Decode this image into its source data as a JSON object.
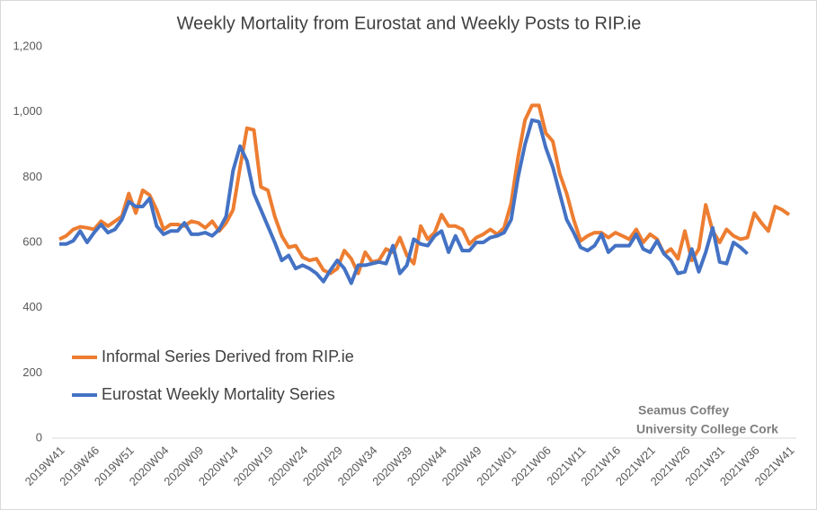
{
  "chart_data": {
    "type": "line",
    "title": "Weekly Mortality from Eurostat and Weekly Posts to RIP.ie",
    "annotation": [
      "Seamus Coffey",
      "University College Cork"
    ],
    "legend": "left-lower",
    "grid": false,
    "categories": [
      "2019W41",
      null,
      null,
      null,
      null,
      "2019W46",
      null,
      null,
      null,
      null,
      "2019W51",
      null,
      null,
      null,
      null,
      "2020W04",
      null,
      null,
      null,
      null,
      "2020W09",
      null,
      null,
      null,
      null,
      "2020W14",
      null,
      null,
      null,
      null,
      "2020W19",
      null,
      null,
      null,
      null,
      "2020W24",
      null,
      null,
      null,
      null,
      "2020W29",
      null,
      null,
      null,
      null,
      "2020W34",
      null,
      null,
      null,
      null,
      "2020W39",
      null,
      null,
      null,
      null,
      "2020W44",
      null,
      null,
      null,
      null,
      "2020W49",
      null,
      null,
      null,
      null,
      "2021W01",
      null,
      null,
      null,
      null,
      "2021W06",
      null,
      null,
      null,
      null,
      "2021W11",
      null,
      null,
      null,
      null,
      "2021W16",
      null,
      null,
      null,
      null,
      "2021W21",
      null,
      null,
      null,
      null,
      "2021W26",
      null,
      null,
      null,
      null,
      "2021W31",
      null,
      null,
      null,
      null,
      "2021W36",
      null,
      null,
      null,
      null,
      "2021W41"
    ],
    "ylim": [
      0,
      1200
    ],
    "yticks": [
      0,
      200,
      400,
      600,
      800,
      {
        "value": 1000,
        "label": "1,000"
      },
      {
        "value": 1200,
        "label": "1,200"
      }
    ],
    "series": [
      {
        "name": "Informal Series Derived from RIP.ie",
        "color": "#ed7d31",
        "values": [
          610,
          620,
          640,
          648,
          645,
          640,
          665,
          650,
          665,
          680,
          750,
          690,
          760,
          745,
          700,
          640,
          655,
          655,
          650,
          665,
          660,
          645,
          665,
          635,
          660,
          700,
          830,
          950,
          945,
          770,
          760,
          680,
          620,
          585,
          590,
          555,
          545,
          550,
          515,
          505,
          520,
          575,
          550,
          505,
          570,
          540,
          545,
          580,
          570,
          615,
          560,
          535,
          650,
          610,
          630,
          685,
          650,
          650,
          640,
          595,
          615,
          625,
          640,
          625,
          645,
          720,
          860,
          975,
          1020,
          1020,
          935,
          910,
          810,
          750,
          670,
          605,
          620,
          630,
          630,
          615,
          630,
          620,
          610,
          640,
          600,
          625,
          610,
          565,
          580,
          550,
          635,
          545,
          580,
          715,
          635,
          600,
          640,
          620,
          610,
          615,
          690,
          660,
          635,
          710,
          700,
          685
        ]
      },
      {
        "name": "Eurostat Weekly Mortality Series",
        "color": "#4472c4",
        "values": [
          595,
          595,
          605,
          635,
          600,
          630,
          655,
          630,
          640,
          670,
          725,
          710,
          710,
          735,
          650,
          625,
          635,
          635,
          660,
          625,
          625,
          630,
          620,
          640,
          680,
          820,
          895,
          850,
          750,
          700,
          650,
          600,
          545,
          560,
          520,
          530,
          520,
          505,
          480,
          515,
          545,
          520,
          475,
          530,
          530,
          535,
          540,
          535,
          590,
          505,
          530,
          610,
          595,
          590,
          620,
          635,
          570,
          620,
          575,
          575,
          600,
          600,
          615,
          620,
          630,
          670,
          800,
          900,
          975,
          970,
          890,
          830,
          750,
          670,
          630,
          585,
          575,
          590,
          625,
          570,
          590,
          590,
          590,
          625,
          580,
          570,
          605,
          565,
          545,
          505,
          510,
          580,
          510,
          570,
          645,
          540,
          535,
          600,
          585,
          565,
          null,
          null,
          null,
          null,
          null,
          null
        ]
      }
    ]
  }
}
